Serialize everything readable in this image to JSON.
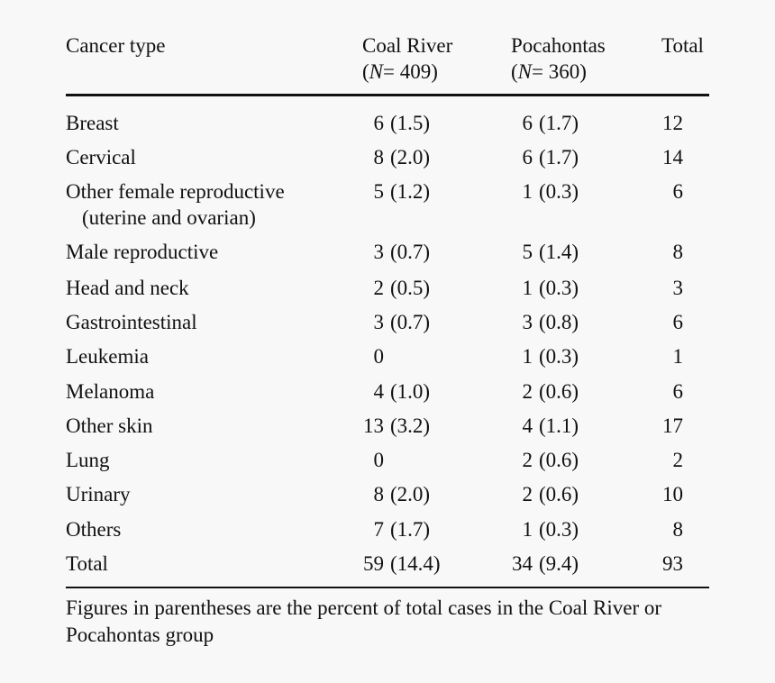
{
  "table": {
    "headers": {
      "cancer_type": "Cancer type",
      "coal_river": "Coal River",
      "coal_river_n": "= 409)",
      "pocahontas": "Pocahontas",
      "pocahontas_n": "= 360)",
      "total": "Total",
      "n_prefix": "(",
      "n_symbol": "N"
    },
    "rows": [
      {
        "cancer_type": "Breast",
        "coal_num": "6",
        "coal_pct": "(1.5)",
        "poca_num": "6",
        "poca_pct": "(1.7)",
        "total": "12"
      },
      {
        "cancer_type": "Cervical",
        "coal_num": "8",
        "coal_pct": "(2.0)",
        "poca_num": "6",
        "poca_pct": "(1.7)",
        "total": "14"
      },
      {
        "cancer_type": "Other female reproductive",
        "cancer_type_line2": "(uterine and ovarian)",
        "coal_num": "5",
        "coal_pct": "(1.2)",
        "poca_num": "1",
        "poca_pct": "(0.3)",
        "total": "6"
      },
      {
        "cancer_type": "Male reproductive",
        "coal_num": "3",
        "coal_pct": "(0.7)",
        "poca_num": "5",
        "poca_pct": "(1.4)",
        "total": "8"
      },
      {
        "cancer_type": "Head and neck",
        "coal_num": "2",
        "coal_pct": "(0.5)",
        "poca_num": "1",
        "poca_pct": "(0.3)",
        "total": "3"
      },
      {
        "cancer_type": "Gastrointestinal",
        "coal_num": "3",
        "coal_pct": "(0.7)",
        "poca_num": "3",
        "poca_pct": "(0.8)",
        "total": "6"
      },
      {
        "cancer_type": "Leukemia",
        "coal_num": "0",
        "coal_pct": "",
        "poca_num": "1",
        "poca_pct": "(0.3)",
        "total": "1"
      },
      {
        "cancer_type": "Melanoma",
        "coal_num": "4",
        "coal_pct": "(1.0)",
        "poca_num": "2",
        "poca_pct": "(0.6)",
        "total": "6"
      },
      {
        "cancer_type": "Other skin",
        "coal_num": "13",
        "coal_pct": "(3.2)",
        "poca_num": "4",
        "poca_pct": "(1.1)",
        "total": "17"
      },
      {
        "cancer_type": "Lung",
        "coal_num": "0",
        "coal_pct": "",
        "poca_num": "2",
        "poca_pct": "(0.6)",
        "total": "2"
      },
      {
        "cancer_type": "Urinary",
        "coal_num": "8",
        "coal_pct": "(2.0)",
        "poca_num": "2",
        "poca_pct": "(0.6)",
        "total": "10"
      },
      {
        "cancer_type": "Others",
        "coal_num": "7",
        "coal_pct": "(1.7)",
        "poca_num": "1",
        "poca_pct": "(0.3)",
        "total": "8"
      },
      {
        "cancer_type": "Total",
        "coal_num": "59",
        "coal_pct": "(14.4)",
        "poca_num": "34",
        "poca_pct": "(9.4)",
        "total": "93"
      }
    ],
    "footnote": "Figures in parentheses are the percent of total cases in the Coal River or Pocahontas group"
  }
}
